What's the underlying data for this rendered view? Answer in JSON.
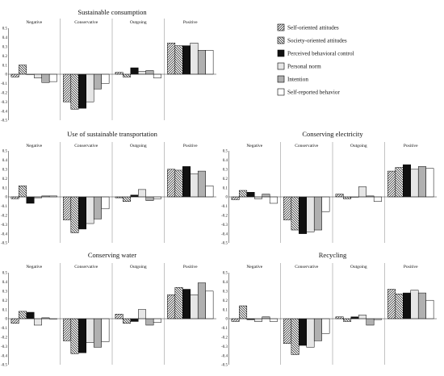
{
  "chart_data": [
    {
      "type": "bar",
      "title": "Sustainable consumption",
      "categories": [
        "Negative",
        "Conservative",
        "Outgoing",
        "Positive"
      ],
      "ylim": [
        -0.5,
        0.5
      ],
      "yticks": [
        "0.5",
        "0.4",
        "0.3",
        "0.2",
        "0.1",
        "0",
        "-0.1",
        "-0.2",
        "-0.3",
        "-0.4",
        "-0.5"
      ],
      "series": [
        {
          "name": "Self-oriented attitudes",
          "values": [
            -0.03,
            -0.3,
            0.02,
            0.34
          ]
        },
        {
          "name": "Society-oriented attitudes",
          "values": [
            0.1,
            -0.38,
            -0.03,
            0.31
          ]
        },
        {
          "name": "Perceived behavioral control",
          "values": [
            0.0,
            -0.37,
            0.07,
            0.31
          ]
        },
        {
          "name": "Personal norm",
          "values": [
            -0.04,
            -0.3,
            0.03,
            0.34
          ]
        },
        {
          "name": "Intention",
          "values": [
            -0.09,
            -0.16,
            0.04,
            0.26
          ]
        },
        {
          "name": "Self-reported behavior",
          "values": [
            -0.08,
            -0.1,
            -0.04,
            0.26
          ]
        }
      ]
    },
    {
      "type": "bar",
      "title": "Use of sustainable transportation",
      "categories": [
        "Negative",
        "Conservative",
        "Outgoing",
        "Positive"
      ],
      "ylim": [
        -0.5,
        0.5
      ],
      "yticks": [
        "0.5",
        "0.4",
        "0.3",
        "0.2",
        "0.1",
        "0",
        "-0.1",
        "-0.2",
        "-0.3",
        "-0.4",
        "-0.5"
      ],
      "series": [
        {
          "name": "Self-oriented attitudes",
          "values": [
            -0.02,
            -0.25,
            -0.01,
            0.3
          ]
        },
        {
          "name": "Society-oriented attitudes",
          "values": [
            0.12,
            -0.39,
            -0.05,
            0.29
          ]
        },
        {
          "name": "Perceived behavioral control",
          "values": [
            -0.07,
            -0.35,
            0.02,
            0.33
          ]
        },
        {
          "name": "Personal norm",
          "values": [
            -0.01,
            -0.29,
            0.08,
            0.25
          ]
        },
        {
          "name": "Intention",
          "values": [
            0.01,
            -0.24,
            -0.04,
            0.28
          ]
        },
        {
          "name": "Self-reported behavior",
          "values": [
            0.01,
            -0.13,
            -0.02,
            0.12
          ]
        }
      ]
    },
    {
      "type": "bar",
      "title": "Conserving electricity",
      "categories": [
        "Negative",
        "Conservative",
        "Outgoing",
        "Positive"
      ],
      "ylim": [
        -0.5,
        0.5
      ],
      "yticks": [
        "0.5",
        "0.4",
        "0.3",
        "0.2",
        "0.1",
        "0",
        "-0.1",
        "-0.2",
        "-0.3",
        "-0.4",
        "-0.5"
      ],
      "series": [
        {
          "name": "Self-oriented attitudes",
          "values": [
            -0.03,
            -0.25,
            0.03,
            0.28
          ]
        },
        {
          "name": "Society-oriented attitudes",
          "values": [
            0.07,
            -0.36,
            -0.02,
            0.32
          ]
        },
        {
          "name": "Perceived behavioral control",
          "values": [
            0.05,
            -0.4,
            0.0,
            0.35
          ]
        },
        {
          "name": "Personal norm",
          "values": [
            -0.02,
            -0.38,
            0.11,
            0.3
          ]
        },
        {
          "name": "Intention",
          "values": [
            0.03,
            -0.36,
            0.01,
            0.33
          ]
        },
        {
          "name": "Self-reported behavior",
          "values": [
            -0.07,
            -0.16,
            -0.05,
            0.31
          ]
        }
      ]
    },
    {
      "type": "bar",
      "title": "Conserving water",
      "categories": [
        "Negative",
        "Conservative",
        "Outgoing",
        "Positive"
      ],
      "ylim": [
        -0.5,
        0.5
      ],
      "yticks": [
        "0.5",
        "0.4",
        "0.3",
        "0.2",
        "0.1",
        "0",
        "-0.1",
        "-0.2",
        "-0.3",
        "-0.4",
        "-0.5"
      ],
      "series": [
        {
          "name": "Self-oriented attitudes",
          "values": [
            -0.05,
            -0.24,
            0.05,
            0.26
          ]
        },
        {
          "name": "Society-oriented attitudes",
          "values": [
            0.08,
            -0.38,
            -0.05,
            0.34
          ]
        },
        {
          "name": "Perceived behavioral control",
          "values": [
            0.07,
            -0.37,
            -0.03,
            0.32
          ]
        },
        {
          "name": "Personal norm",
          "values": [
            -0.07,
            -0.26,
            0.1,
            0.26
          ]
        },
        {
          "name": "Intention",
          "values": [
            0.01,
            -0.31,
            -0.07,
            0.39
          ]
        },
        {
          "name": "Self-reported behavior",
          "values": [
            0.0,
            -0.25,
            -0.04,
            0.3
          ]
        }
      ]
    },
    {
      "type": "bar",
      "title": "Recycling",
      "categories": [
        "Negative",
        "Conservative",
        "Outgoing",
        "Positive"
      ],
      "ylim": [
        -0.5,
        0.5
      ],
      "yticks": [
        "0.5",
        "0.4",
        "0.3",
        "0.2",
        "0.1",
        "0",
        "-0.1",
        "-0.2",
        "-0.3",
        "-0.4",
        "-0.5"
      ],
      "series": [
        {
          "name": "Self-oriented attitudes",
          "values": [
            -0.03,
            -0.27,
            0.02,
            0.32
          ]
        },
        {
          "name": "Society-oriented attitudes",
          "values": [
            0.14,
            -0.39,
            -0.03,
            0.27
          ]
        },
        {
          "name": "Perceived behavioral control",
          "values": [
            -0.01,
            -0.29,
            0.02,
            0.28
          ]
        },
        {
          "name": "Personal norm",
          "values": [
            -0.03,
            -0.31,
            0.04,
            0.31
          ]
        },
        {
          "name": "Intention",
          "values": [
            0.02,
            -0.24,
            -0.07,
            0.28
          ]
        },
        {
          "name": "Self-reported behavior",
          "values": [
            -0.03,
            -0.16,
            -0.01,
            0.2
          ]
        }
      ]
    }
  ],
  "legend": {
    "placement": "top-right",
    "entries": [
      {
        "label": "Self-oriented attitudes",
        "pattern": "hatch-left"
      },
      {
        "label": "Society-oriented attitudes",
        "pattern": "hatch-right"
      },
      {
        "label": "Perceived behavioral control",
        "pattern": "solid-black"
      },
      {
        "label": "Personal norm",
        "pattern": "light-gray"
      },
      {
        "label": "Intention",
        "pattern": "mid-gray"
      },
      {
        "label": "Self-reported behavior",
        "pattern": "white"
      }
    ]
  },
  "colors": {
    "bar_stroke": "#000000",
    "light_gray": "#e6e6e6",
    "mid_gray": "#b0b0b0",
    "black": "#111111",
    "white": "#ffffff",
    "divider": "#999999"
  }
}
